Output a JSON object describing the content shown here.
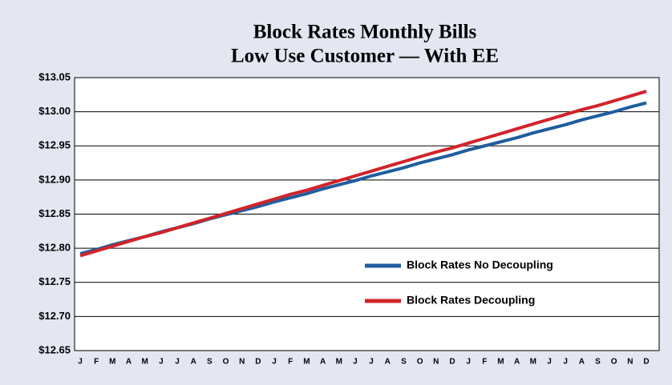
{
  "chart_data": {
    "type": "line",
    "title": "Block Rates Monthly Bills",
    "subtitle": "Low Use Customer — With EE",
    "categories": [
      "J",
      "F",
      "M",
      "A",
      "M",
      "J",
      "J",
      "A",
      "S",
      "O",
      "N",
      "D",
      "J",
      "F",
      "M",
      "A",
      "M",
      "J",
      "J",
      "A",
      "S",
      "O",
      "N",
      "D",
      "J",
      "F",
      "M",
      "A",
      "M",
      "J",
      "J",
      "A",
      "S",
      "O",
      "N",
      "D"
    ],
    "series": [
      {
        "name": "Block Rates No Decoupling",
        "color": "#1f5d9e",
        "values": [
          12.792,
          12.798,
          12.805,
          12.811,
          12.817,
          12.824,
          12.83,
          12.836,
          12.843,
          12.849,
          12.855,
          12.861,
          12.868,
          12.874,
          12.88,
          12.887,
          12.893,
          12.899,
          12.906,
          12.912,
          12.918,
          12.925,
          12.931,
          12.937,
          12.944,
          12.95,
          12.956,
          12.962,
          12.969,
          12.975,
          12.981,
          12.988,
          12.994,
          13.0,
          13.007,
          13.013
        ]
      },
      {
        "name": "Block Rates Decoupling",
        "color": "#d2232a",
        "values": [
          12.789,
          12.796,
          12.803,
          12.81,
          12.817,
          12.823,
          12.83,
          12.837,
          12.844,
          12.851,
          12.858,
          12.865,
          12.872,
          12.879,
          12.885,
          12.892,
          12.899,
          12.906,
          12.913,
          12.92,
          12.927,
          12.934,
          12.941,
          12.947,
          12.954,
          12.961,
          12.968,
          12.975,
          12.982,
          12.989,
          12.996,
          13.003,
          13.009,
          13.016,
          13.023,
          13.03
        ]
      }
    ],
    "ylim": [
      12.65,
      13.05
    ],
    "yticks": [
      {
        "value": 12.65,
        "label": "$12.65"
      },
      {
        "value": 12.7,
        "label": "$12.70"
      },
      {
        "value": 12.75,
        "label": "$12.75"
      },
      {
        "value": 12.8,
        "label": "$12.80"
      },
      {
        "value": 12.85,
        "label": "$12.85"
      },
      {
        "value": 12.9,
        "label": "$12.90"
      },
      {
        "value": 12.95,
        "label": "$12.95"
      },
      {
        "value": 13.0,
        "label": "$13.00"
      },
      {
        "value": 13.05,
        "label": "$13.05"
      }
    ],
    "grid": true,
    "legend": "right"
  }
}
